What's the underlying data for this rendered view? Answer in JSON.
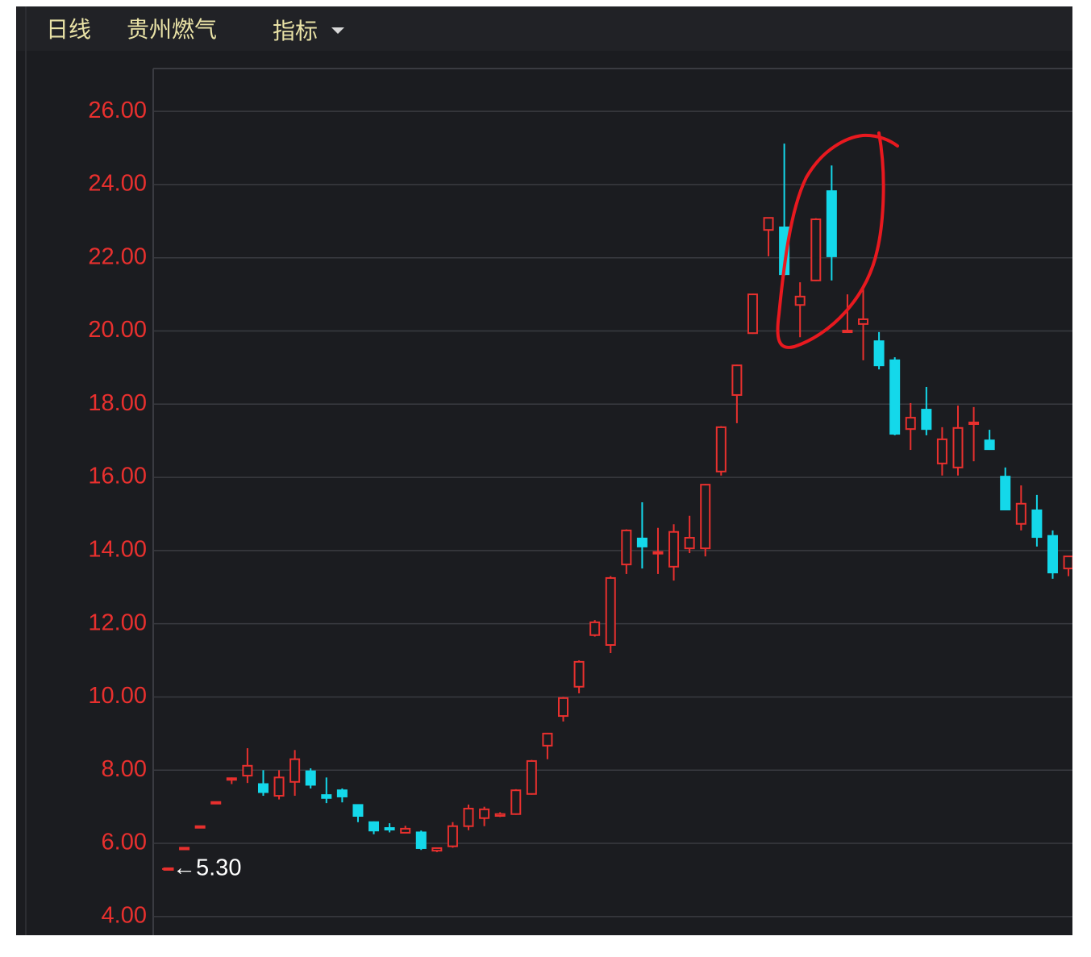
{
  "toolbar": {
    "period": "日线",
    "stock": "贵州燃气",
    "menu": "指标"
  },
  "chart_data": {
    "type": "candlestick",
    "open": [
      5.3,
      5.85,
      6.44,
      7.1,
      7.75,
      7.85,
      7.62,
      7.3,
      7.68,
      7.97,
      7.32,
      7.45,
      7.05,
      6.58,
      6.42,
      6.29,
      6.3,
      5.8,
      5.92,
      6.47,
      6.69,
      6.75,
      6.8,
      7.35,
      8.67,
      9.48,
      10.28,
      11.69,
      11.42,
      13.62,
      14.33,
      13.92,
      13.56,
      14.06,
      14.06,
      16.16,
      18.25,
      19.94,
      22.76,
      22.83,
      20.71,
      21.38,
      23.82,
      19.99,
      20.19,
      19.72,
      19.2,
      17.32,
      17.85,
      16.38,
      16.27,
      17.46,
      17.01,
      16.02,
      14.73,
      15.1,
      14.4,
      13.51
    ],
    "high": [
      5.32,
      5.88,
      6.47,
      7.13,
      7.8,
      8.6,
      8.0,
      8.0,
      8.55,
      8.05,
      7.8,
      7.5,
      7.05,
      6.6,
      6.55,
      6.48,
      6.35,
      5.88,
      6.58,
      7.06,
      7.0,
      6.85,
      7.48,
      8.28,
      9.02,
      10.0,
      11.0,
      12.1,
      13.3,
      14.58,
      15.32,
      14.62,
      14.72,
      14.95,
      15.82,
      17.4,
      19.08,
      21.02,
      23.1,
      25.12,
      21.33,
      23.08,
      24.52,
      21.0,
      21.22,
      19.97,
      19.28,
      18.03,
      18.47,
      17.37,
      17.96,
      17.92,
      17.3,
      16.27,
      15.78,
      15.52,
      14.55,
      13.84
    ],
    "low": [
      5.3,
      5.85,
      6.44,
      7.1,
      7.62,
      7.65,
      7.3,
      7.2,
      7.3,
      7.5,
      7.1,
      7.12,
      6.58,
      6.25,
      6.3,
      6.28,
      5.82,
      5.76,
      5.88,
      6.36,
      6.47,
      6.72,
      6.78,
      7.33,
      8.3,
      9.33,
      10.1,
      11.65,
      11.2,
      13.36,
      13.51,
      13.36,
      13.18,
      13.93,
      13.84,
      16.05,
      17.48,
      19.92,
      22.04,
      21.51,
      19.83,
      21.36,
      21.38,
      19.98,
      19.2,
      18.95,
      17.15,
      16.75,
      17.15,
      16.05,
      16.05,
      16.44,
      16.75,
      15.1,
      14.55,
      14.11,
      13.23,
      13.3
    ],
    "close": [
      5.32,
      5.88,
      6.47,
      7.13,
      7.78,
      8.12,
      7.4,
      7.8,
      8.3,
      7.6,
      7.24,
      7.28,
      6.75,
      6.35,
      6.38,
      6.4,
      5.87,
      5.87,
      6.47,
      6.95,
      6.93,
      6.8,
      7.45,
      8.25,
      9.0,
      9.97,
      10.96,
      12.04,
      13.25,
      14.55,
      14.11,
      13.96,
      14.51,
      14.35,
      15.8,
      17.37,
      19.06,
      21.0,
      23.09,
      21.55,
      20.94,
      23.05,
      22.04,
      20.01,
      20.32,
      19.06,
      17.19,
      17.63,
      17.32,
      17.04,
      17.35,
      17.5,
      16.77,
      15.12,
      15.28,
      14.37,
      13.4,
      13.84
    ],
    "up_color": "#e8302e",
    "down_color": "#14d8ea",
    "ylim": [
      3.49,
      27.17
    ],
    "yticks": [
      {
        "value": 4,
        "label": "4.00"
      },
      {
        "value": 6,
        "label": "6.00"
      },
      {
        "value": 8,
        "label": "8.00"
      },
      {
        "value": 10,
        "label": "10.00"
      },
      {
        "value": 12,
        "label": "12.00"
      },
      {
        "value": 14,
        "label": "14.00"
      },
      {
        "value": 16,
        "label": "16.00"
      },
      {
        "value": 18,
        "label": "18.00"
      },
      {
        "value": 20,
        "label": "20.00"
      },
      {
        "value": 22,
        "label": "22.00"
      },
      {
        "value": 24,
        "label": "24.00"
      },
      {
        "value": 26,
        "label": "26.00"
      }
    ],
    "grid": true,
    "low_marker": {
      "value": 5.3,
      "label": "←5.30"
    }
  }
}
